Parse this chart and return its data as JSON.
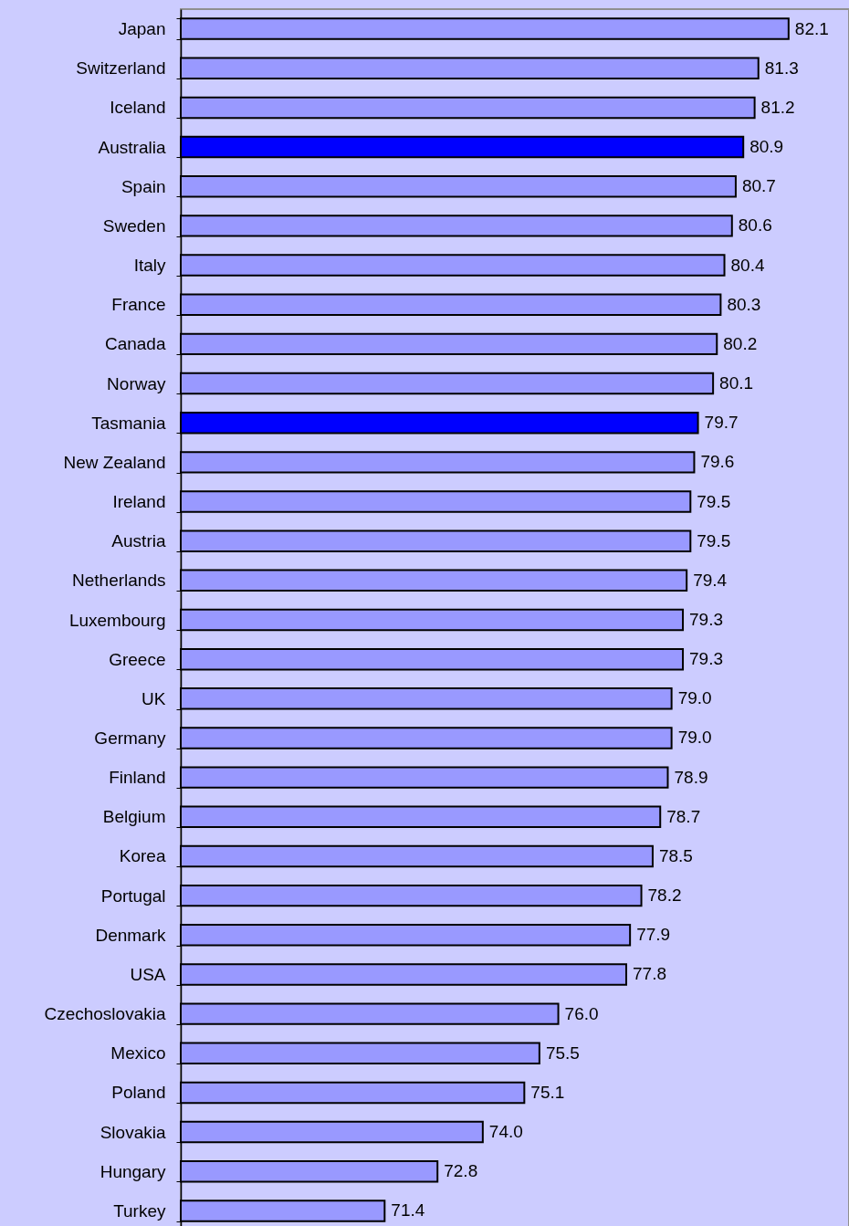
{
  "chart_data": {
    "type": "bar",
    "orientation": "horizontal",
    "categories": [
      "Japan",
      "Switzerland",
      "Iceland",
      "Australia",
      "Spain",
      "Sweden",
      "Italy",
      "France",
      "Canada",
      "Norway",
      "Tasmania",
      "New Zealand",
      "Ireland",
      "Austria",
      "Netherlands",
      "Luxembourg",
      "Greece",
      "UK",
      "Germany",
      "Finland",
      "Belgium",
      "Korea",
      "Portugal",
      "Denmark",
      "USA",
      "Czechoslovakia",
      "Mexico",
      "Poland",
      "Slovakia",
      "Hungary",
      "Turkey"
    ],
    "values": [
      82.1,
      81.3,
      81.2,
      80.9,
      80.7,
      80.6,
      80.4,
      80.3,
      80.2,
      80.1,
      79.7,
      79.6,
      79.5,
      79.5,
      79.4,
      79.3,
      79.3,
      79.0,
      79.0,
      78.9,
      78.7,
      78.5,
      78.2,
      77.9,
      77.8,
      76.0,
      75.5,
      75.1,
      74.0,
      72.8,
      71.4
    ],
    "value_labels": [
      "82.1",
      "81.3",
      "81.2",
      "80.9",
      "80.7",
      "80.6",
      "80.4",
      "80.3",
      "80.2",
      "80.1",
      "79.7",
      "79.6",
      "79.5",
      "79.5",
      "79.4",
      "79.3",
      "79.3",
      "79.0",
      "79.0",
      "78.9",
      "78.7",
      "78.5",
      "78.2",
      "77.9",
      "77.8",
      "76.0",
      "75.5",
      "75.1",
      "74.0",
      "72.8",
      "71.4"
    ],
    "colors": [
      "#9999ff",
      "#9999ff",
      "#9999ff",
      "#0000ff",
      "#9999ff",
      "#9999ff",
      "#9999ff",
      "#9999ff",
      "#9999ff",
      "#9999ff",
      "#0000ff",
      "#9999ff",
      "#9999ff",
      "#9999ff",
      "#9999ff",
      "#9999ff",
      "#9999ff",
      "#9999ff",
      "#9999ff",
      "#9999ff",
      "#9999ff",
      "#9999ff",
      "#9999ff",
      "#9999ff",
      "#9999ff",
      "#9999ff",
      "#9999ff",
      "#9999ff",
      "#9999ff",
      "#9999ff",
      "#9999ff"
    ],
    "xlim": [
      66,
      83.7
    ],
    "tick_labels": "y"
  }
}
